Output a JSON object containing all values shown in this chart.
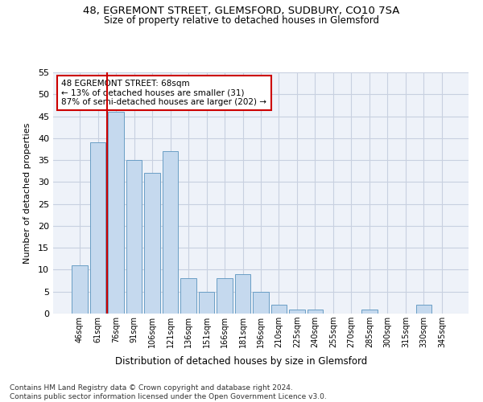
{
  "title_line1": "48, EGREMONT STREET, GLEMSFORD, SUDBURY, CO10 7SA",
  "title_line2": "Size of property relative to detached houses in Glemsford",
  "xlabel": "Distribution of detached houses by size in Glemsford",
  "ylabel": "Number of detached properties",
  "categories": [
    "46sqm",
    "61sqm",
    "76sqm",
    "91sqm",
    "106sqm",
    "121sqm",
    "136sqm",
    "151sqm",
    "166sqm",
    "181sqm",
    "196sqm",
    "210sqm",
    "225sqm",
    "240sqm",
    "255sqm",
    "270sqm",
    "285sqm",
    "300sqm",
    "315sqm",
    "330sqm",
    "345sqm"
  ],
  "values": [
    11,
    39,
    46,
    35,
    32,
    37,
    8,
    5,
    8,
    9,
    5,
    2,
    1,
    1,
    0,
    0,
    1,
    0,
    0,
    2,
    0
  ],
  "bar_color": "#c5d9ee",
  "bar_edgecolor": "#6a9ec5",
  "ylim": [
    0,
    55
  ],
  "yticks": [
    0,
    5,
    10,
    15,
    20,
    25,
    30,
    35,
    40,
    45,
    50,
    55
  ],
  "vline_color": "#cc0000",
  "annotation_title": "48 EGREMONT STREET: 68sqm",
  "annotation_line1": "← 13% of detached houses are smaller (31)",
  "annotation_line2": "87% of semi-detached houses are larger (202) →",
  "annotation_box_color": "#ffffff",
  "annotation_box_edgecolor": "#cc0000",
  "footer_line1": "Contains HM Land Registry data © Crown copyright and database right 2024.",
  "footer_line2": "Contains public sector information licensed under the Open Government Licence v3.0.",
  "background_color": "#eef2f9",
  "grid_color": "#c8d0e0",
  "fig_width": 6.0,
  "fig_height": 5.0
}
